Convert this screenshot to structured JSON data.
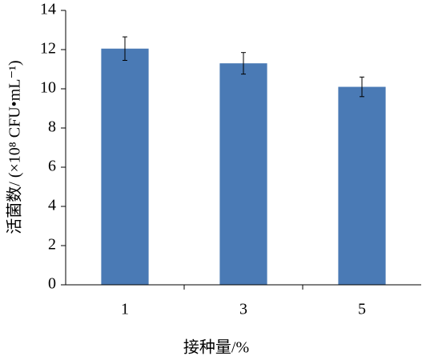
{
  "chart_data": {
    "type": "bar",
    "y_label": "活菌数/ (×10⁸ CFU•mL⁻¹)",
    "x_label": "接种量/%",
    "categories": [
      "1",
      "3",
      "5"
    ],
    "values": [
      12.05,
      11.3,
      10.1
    ],
    "errors": [
      0.6,
      0.55,
      0.5
    ],
    "color": "#4a7ab5",
    "ylim": [
      0,
      14
    ],
    "yticks": [
      0,
      2,
      4,
      6,
      8,
      10,
      12,
      14
    ],
    "grid": false
  }
}
